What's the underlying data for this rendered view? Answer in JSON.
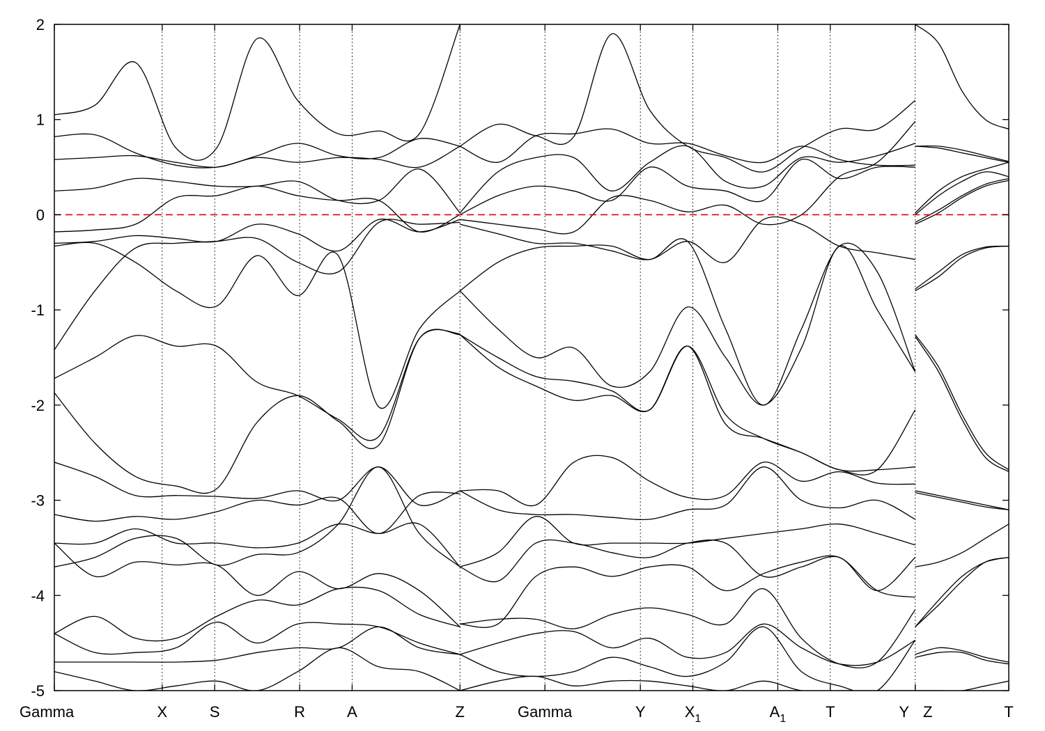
{
  "chart_data": {
    "type": "line",
    "title": "",
    "xlabel": "",
    "ylabel": "",
    "ylim": [
      -5,
      2
    ],
    "y_ticks": [
      "2",
      "1",
      "0",
      "-1",
      "-2",
      "-3",
      "-4",
      "-5"
    ],
    "y_tick_values": [
      2,
      1,
      0,
      -1,
      -2,
      -3,
      -4,
      -5
    ],
    "x_range": [
      0,
      10
    ],
    "k_points": [
      {
        "label": "Gamma",
        "sub": "",
        "x": 0.0
      },
      {
        "label": "X",
        "sub": "",
        "x": 1.13
      },
      {
        "label": "S",
        "sub": "",
        "x": 1.68
      },
      {
        "label": "R",
        "sub": "",
        "x": 2.57
      },
      {
        "label": "A",
        "sub": "",
        "x": 3.12
      },
      {
        "label": "Z",
        "sub": "",
        "x": 4.25
      },
      {
        "label": "Gamma",
        "sub": "",
        "x": 5.14
      },
      {
        "label": "Y",
        "sub": "",
        "x": 6.14
      },
      {
        "label": "X",
        "sub": "1",
        "x": 6.69
      },
      {
        "label": "A",
        "sub": "1",
        "x": 7.58
      },
      {
        "label": "T",
        "sub": "",
        "x": 8.13
      },
      {
        "label": "Y",
        "sub": "",
        "x": 9.02
      },
      {
        "label": "Z",
        "sub": "",
        "x": 9.02
      },
      {
        "label": "T",
        "sub": "",
        "x": 10.0
      }
    ],
    "segment_break_x": 9.02,
    "fermi_level": 0,
    "grid": false,
    "line_color": "#000000",
    "fermi_color": "#e00000",
    "bands_left": [
      [
        1.05,
        1.15,
        1.6,
        0.7,
        0.7,
        1.85,
        1.2,
        0.85,
        0.88,
        0.85,
        2.0
      ],
      [
        0.82,
        0.84,
        0.65,
        0.52,
        0.5,
        0.62,
        0.75,
        0.62,
        0.6,
        0.8,
        0.72
      ],
      [
        0.58,
        0.6,
        0.62,
        0.55,
        0.5,
        0.6,
        0.55,
        0.6,
        0.58,
        0.5,
        0.72
      ],
      [
        0.25,
        0.28,
        0.38,
        0.35,
        0.3,
        0.3,
        0.35,
        0.15,
        0.15,
        0.48,
        0.02
      ],
      [
        -0.18,
        -0.16,
        -0.1,
        0.18,
        0.2,
        0.3,
        0.2,
        0.15,
        0.15,
        -0.18,
        0.0
      ],
      [
        -0.3,
        -0.28,
        -0.22,
        -0.25,
        -0.28,
        -0.1,
        -0.2,
        -0.38,
        -0.05,
        -0.18,
        -0.05
      ],
      [
        -0.33,
        -0.3,
        -0.5,
        -0.8,
        -0.96,
        -0.43,
        -0.85,
        -0.43,
        -2.02,
        -1.2,
        -0.8
      ],
      [
        -1.42,
        -0.8,
        -0.35,
        -0.3,
        -0.28,
        -0.25,
        -0.5,
        -0.6,
        -0.08,
        -0.1,
        -0.08
      ],
      [
        -1.72,
        -1.5,
        -1.27,
        -1.38,
        -1.38,
        -1.76,
        -1.9,
        -2.15,
        -2.33,
        -1.3,
        -1.25
      ],
      [
        -1.87,
        -2.4,
        -2.75,
        -2.85,
        -2.88,
        -2.18,
        -1.9,
        -2.17,
        -2.42,
        -1.3,
        -1.26
      ],
      [
        -2.6,
        -2.75,
        -2.95,
        -2.95,
        -2.96,
        -2.98,
        -2.9,
        -3.0,
        -2.65,
        -3.05,
        -2.9
      ],
      [
        -3.15,
        -3.22,
        -3.17,
        -3.2,
        -3.12,
        -3.0,
        -3.05,
        -2.98,
        -3.35,
        -2.95,
        -2.93
      ],
      [
        -3.45,
        -3.45,
        -3.3,
        -3.45,
        -3.45,
        -3.5,
        -3.45,
        -3.25,
        -3.35,
        -3.25,
        -3.7
      ],
      [
        -3.7,
        -3.6,
        -3.4,
        -3.4,
        -3.68,
        -3.57,
        -3.55,
        -3.25,
        -2.65,
        -3.35,
        -3.7
      ],
      [
        -3.45,
        -3.8,
        -3.65,
        -3.68,
        -3.68,
        -4.0,
        -3.75,
        -3.93,
        -3.77,
        -3.95,
        -4.33
      ],
      [
        -4.4,
        -4.22,
        -4.45,
        -4.45,
        -4.22,
        -4.05,
        -4.1,
        -3.93,
        -3.95,
        -4.2,
        -4.33
      ],
      [
        -4.4,
        -4.6,
        -4.6,
        -4.55,
        -4.28,
        -4.5,
        -4.3,
        -4.3,
        -4.33,
        -4.5,
        -4.62
      ],
      [
        -4.7,
        -4.7,
        -4.7,
        -4.7,
        -4.68,
        -4.6,
        -4.55,
        -4.55,
        -4.33,
        -4.55,
        -4.62
      ],
      [
        -4.8,
        -4.9,
        -5.0,
        -4.95,
        -4.9,
        -5.0,
        -4.8,
        -4.55,
        -4.75,
        -4.8,
        -5.0
      ]
    ],
    "bands_mid": [
      [
        0.72,
        0.95,
        0.83,
        0.82,
        1.9,
        1.1,
        0.72,
        0.6,
        0.45,
        0.7,
        0.9,
        0.9,
        1.2
      ],
      [
        0.72,
        0.55,
        0.83,
        0.85,
        0.9,
        0.75,
        0.75,
        0.62,
        0.55,
        0.72,
        0.58,
        0.52,
        0.52
      ],
      [
        0.02,
        0.45,
        0.6,
        0.6,
        0.25,
        0.55,
        0.72,
        0.35,
        0.3,
        0.6,
        0.55,
        0.62,
        0.75
      ],
      [
        0.0,
        0.2,
        0.3,
        0.25,
        0.15,
        0.5,
        0.3,
        0.25,
        0.15,
        0.58,
        0.38,
        0.5,
        0.5
      ],
      [
        -0.05,
        -0.1,
        -0.15,
        -0.18,
        0.18,
        0.15,
        0.03,
        0.1,
        -0.1,
        0.0,
        0.4,
        0.55,
        0.98
      ],
      [
        -0.1,
        -0.2,
        -0.3,
        -0.3,
        -0.38,
        -0.47,
        -0.28,
        -0.5,
        -0.05,
        -0.1,
        -0.33,
        -0.4,
        -0.47
      ],
      [
        -0.8,
        -0.5,
        -0.35,
        -0.33,
        -0.33,
        -0.47,
        -0.28,
        -1.2,
        -2.0,
        -1.2,
        -0.33,
        -0.6,
        -1.65
      ],
      [
        -0.8,
        -1.2,
        -1.5,
        -1.4,
        -1.8,
        -1.65,
        -0.97,
        -1.5,
        -2.0,
        -1.4,
        -0.33,
        -1.0,
        -1.65
      ],
      [
        -1.26,
        -1.5,
        -1.7,
        -1.75,
        -1.85,
        -2.05,
        -1.38,
        -2.1,
        -2.35,
        -2.5,
        -2.68,
        -2.68,
        -2.05
      ],
      [
        -1.26,
        -1.6,
        -1.8,
        -1.95,
        -1.9,
        -2.05,
        -1.38,
        -2.2,
        -2.35,
        -2.5,
        -2.68,
        -2.68,
        -2.65
      ],
      [
        -2.9,
        -2.9,
        -3.05,
        -2.6,
        -2.55,
        -2.8,
        -2.97,
        -2.95,
        -2.6,
        -2.8,
        -2.7,
        -2.82,
        -2.83
      ],
      [
        -2.9,
        -3.1,
        -3.15,
        -3.15,
        -3.18,
        -3.2,
        -3.1,
        -3.05,
        -2.65,
        -3.0,
        -3.08,
        -3.0,
        -3.2
      ],
      [
        -3.7,
        -3.55,
        -3.17,
        -3.45,
        -3.45,
        -3.45,
        -3.45,
        -3.4,
        -3.35,
        -3.3,
        -3.25,
        -3.35,
        -3.47
      ],
      [
        -3.7,
        -3.85,
        -3.45,
        -3.45,
        -3.55,
        -3.6,
        -3.45,
        -3.45,
        -3.8,
        -3.7,
        -3.6,
        -3.95,
        -3.6
      ],
      [
        -4.3,
        -4.3,
        -3.8,
        -3.7,
        -3.8,
        -3.7,
        -3.7,
        -3.95,
        -3.77,
        -3.65,
        -3.6,
        -3.95,
        -4.02
      ],
      [
        -4.3,
        -4.25,
        -4.25,
        -4.35,
        -4.2,
        -4.13,
        -4.2,
        -4.3,
        -3.93,
        -4.45,
        -4.72,
        -4.7,
        -4.15
      ],
      [
        -4.62,
        -4.5,
        -4.4,
        -4.38,
        -4.55,
        -4.45,
        -4.65,
        -4.6,
        -4.3,
        -4.55,
        -4.72,
        -4.7,
        -4.47
      ],
      [
        -4.62,
        -4.8,
        -4.85,
        -4.8,
        -4.65,
        -4.75,
        -4.85,
        -4.7,
        -4.33,
        -4.8,
        -4.95,
        -5.0,
        -4.47
      ],
      [
        -5.0,
        -4.9,
        -4.85,
        -4.95,
        -4.9,
        -4.9,
        -4.95,
        -5.0,
        -4.9,
        -5.0,
        -5.0,
        -5.0,
        -5.0
      ]
    ],
    "bands_right": [
      [
        2.0,
        1.8,
        1.3,
        1.0,
        0.9
      ],
      [
        0.72,
        0.72,
        0.68,
        0.62,
        0.56
      ],
      [
        0.72,
        0.7,
        0.65,
        0.6,
        0.55
      ],
      [
        0.02,
        0.25,
        0.4,
        0.48,
        0.55
      ],
      [
        0.0,
        0.2,
        0.35,
        0.45,
        0.4
      ],
      [
        -0.08,
        0.05,
        0.2,
        0.32,
        0.38
      ],
      [
        -0.1,
        0.02,
        0.18,
        0.3,
        0.36
      ],
      [
        -0.8,
        -0.65,
        -0.45,
        -0.35,
        -0.33
      ],
      [
        -0.78,
        -0.6,
        -0.42,
        -0.34,
        -0.33
      ],
      [
        -1.26,
        -1.6,
        -2.1,
        -2.5,
        -2.68
      ],
      [
        -1.28,
        -1.65,
        -2.15,
        -2.55,
        -2.7
      ],
      [
        -2.9,
        -2.95,
        -3.0,
        -3.05,
        -3.1
      ],
      [
        -2.92,
        -2.97,
        -3.02,
        -3.07,
        -3.1
      ],
      [
        -3.7,
        -3.65,
        -3.55,
        -3.4,
        -3.25
      ],
      [
        -4.33,
        -4.1,
        -3.85,
        -3.65,
        -3.6
      ],
      [
        -4.33,
        -4.05,
        -3.8,
        -3.65,
        -3.6
      ],
      [
        -4.62,
        -4.55,
        -4.58,
        -4.65,
        -4.7
      ],
      [
        -4.65,
        -4.6,
        -4.6,
        -4.68,
        -4.72
      ],
      [
        -5.0,
        -5.0,
        -5.0,
        -4.95,
        -4.9
      ]
    ]
  }
}
